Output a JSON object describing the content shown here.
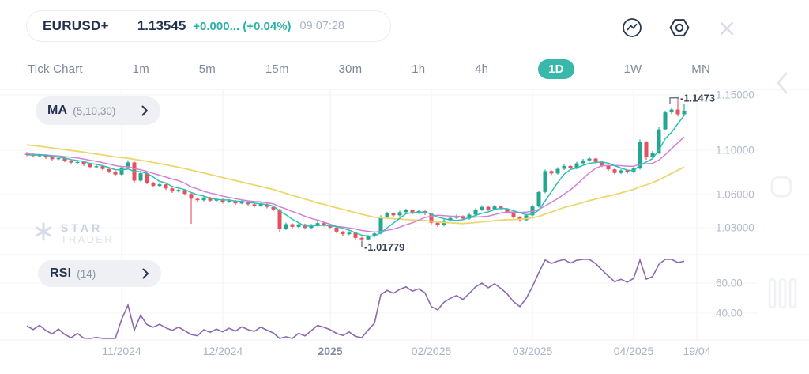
{
  "header": {
    "symbol": "EURUSD+",
    "price": "1.13545",
    "change": "+0.000... (+0.04%)",
    "time": "09:07:28",
    "icons": [
      "trend-pulse-circle",
      "settings-hexagon",
      "close-x"
    ]
  },
  "tabs": {
    "items": [
      {
        "label": "Tick Chart",
        "selected": false
      },
      {
        "label": "1m",
        "selected": false
      },
      {
        "label": "5m",
        "selected": false
      },
      {
        "label": "15m",
        "selected": false
      },
      {
        "label": "30m",
        "selected": false
      },
      {
        "label": "1h",
        "selected": false
      },
      {
        "label": "4h",
        "selected": false
      },
      {
        "label": "1D",
        "selected": true
      },
      {
        "label": "1W",
        "selected": false
      },
      {
        "label": "MN",
        "selected": false
      }
    ]
  },
  "indicators": {
    "ma": {
      "name": "MA",
      "params": "(5,10,30)"
    },
    "rsi": {
      "name": "RSI",
      "params": "(14)"
    }
  },
  "watermark": {
    "line1": "STAR",
    "line2": "TRADER",
    "logo": "star-asterisk"
  },
  "edge_controls": [
    "chevron-left",
    "rounded-square",
    "triple-bars"
  ],
  "chart_data": {
    "type": "candlestick",
    "symbol": "EURUSD+",
    "timeframe": "1D",
    "grid": true,
    "price_axis": {
      "side": "right",
      "visible_range": [
        1.0086,
        1.155
      ],
      "ticks": [
        {
          "label": "1.15000",
          "price": 1.15
        },
        {
          "label": "1.10000",
          "price": 1.1
        },
        {
          "label": "1.06000",
          "price": 1.06
        },
        {
          "label": "1.03000",
          "price": 1.03
        }
      ],
      "annotations": {
        "high": {
          "label": "-1.1473",
          "price": 1.1473,
          "index": 103
        },
        "low": {
          "label": "-1.01779",
          "price": 1.01779,
          "index": 53
        }
      }
    },
    "time_axis": {
      "ticks": [
        {
          "label": "11/2024",
          "index": 15,
          "bold": false
        },
        {
          "label": "12/2024",
          "index": 31,
          "bold": false
        },
        {
          "label": "2025",
          "index": 48,
          "bold": true
        },
        {
          "label": "02/2025",
          "index": 64,
          "bold": false
        },
        {
          "label": "03/2025",
          "index": 80,
          "bold": false
        },
        {
          "label": "04/2025",
          "index": 96,
          "bold": false
        },
        {
          "label": "19/04",
          "index": 106,
          "bold": false
        }
      ]
    },
    "colors": {
      "up": "#21a692",
      "down": "#e4525f"
    },
    "moving_averages": {
      "periods": [
        5,
        10,
        30
      ],
      "colors": {
        "ma5": "#2dc1b2",
        "ma10": "#d47fd6",
        "ma30": "#ecd66e"
      }
    },
    "rsi": {
      "period": 14,
      "color": "#8a69ad",
      "ticks": [
        {
          "label": "60.00",
          "value": 60
        },
        {
          "label": "40.00",
          "value": 40
        }
      ]
    },
    "lead_in_closes": [
      1.1135,
      1.1142,
      1.1128,
      1.115,
      1.116,
      1.1148,
      1.1132,
      1.114,
      1.1118,
      1.1102,
      1.111,
      1.1088,
      1.1072,
      1.108,
      1.1058,
      1.1042,
      1.105,
      1.1028,
      1.1012,
      1.102,
      1.0998,
      1.0982,
      1.099,
      1.0968,
      1.0975,
      1.0958,
      1.0965,
      1.0948,
      1.0955,
      1.0968
    ],
    "candles": [
      [
        1.0968,
        1.0984,
        1.0947,
        1.0962
      ],
      [
        1.0962,
        1.0972,
        1.0934,
        1.0948
      ],
      [
        1.0948,
        1.0968,
        1.0938,
        1.0955
      ],
      [
        1.0955,
        1.0962,
        1.0921,
        1.0935
      ],
      [
        1.0935,
        1.0945,
        1.0906,
        1.092
      ],
      [
        1.092,
        1.0941,
        1.091,
        1.0928
      ],
      [
        1.0928,
        1.0935,
        1.0892,
        1.0905
      ],
      [
        1.0905,
        1.0913,
        1.0874,
        1.0888
      ],
      [
        1.0888,
        1.0908,
        1.0878,
        1.0895
      ],
      [
        1.0895,
        1.0901,
        1.0858,
        1.0872
      ],
      [
        1.0872,
        1.0879,
        1.0834,
        1.0848
      ],
      [
        1.0848,
        1.087,
        1.0838,
        1.0856
      ],
      [
        1.0856,
        1.0862,
        1.0816,
        1.083
      ],
      [
        1.083,
        1.0838,
        1.0794,
        1.0808
      ],
      [
        1.0808,
        1.0815,
        1.0766,
        1.078
      ],
      [
        1.078,
        1.0858,
        1.077,
        1.0845
      ],
      [
        1.0845,
        1.091,
        1.0836,
        1.089
      ],
      [
        1.089,
        1.0898,
        1.07,
        1.0725
      ],
      [
        1.0725,
        1.0806,
        1.0714,
        1.0792
      ],
      [
        1.0792,
        1.08,
        1.0692,
        1.0705
      ],
      [
        1.0705,
        1.0714,
        1.0664,
        1.0678
      ],
      [
        1.0678,
        1.0706,
        1.0668,
        1.0692
      ],
      [
        1.0692,
        1.0699,
        1.0641,
        1.0655
      ],
      [
        1.0655,
        1.0663,
        1.0614,
        1.0628
      ],
      [
        1.0628,
        1.0656,
        1.0618,
        1.0642
      ],
      [
        1.0642,
        1.065,
        1.0591,
        1.0605
      ],
      [
        1.0605,
        1.0612,
        1.0335,
        1.0562
      ],
      [
        1.0562,
        1.0574,
        1.0534,
        1.0548
      ],
      [
        1.0548,
        1.0586,
        1.0538,
        1.0572
      ],
      [
        1.0572,
        1.058,
        1.053,
        1.0545
      ],
      [
        1.0545,
        1.0572,
        1.0536,
        1.0558
      ],
      [
        1.0558,
        1.0565,
        1.0518,
        1.0532
      ],
      [
        1.0532,
        1.0559,
        1.0524,
        1.0545
      ],
      [
        1.0545,
        1.0552,
        1.0506,
        1.052
      ],
      [
        1.052,
        1.0549,
        1.0512,
        1.0535
      ],
      [
        1.0535,
        1.0542,
        1.0498,
        1.0512
      ],
      [
        1.0512,
        1.052,
        1.0484,
        1.0498
      ],
      [
        1.0498,
        1.0526,
        1.049,
        1.0512
      ],
      [
        1.0512,
        1.0519,
        1.0474,
        1.0488
      ],
      [
        1.0488,
        1.0495,
        1.0451,
        1.0465
      ],
      [
        1.0465,
        1.0472,
        1.0262,
        1.029
      ],
      [
        1.029,
        1.0346,
        1.028,
        1.0332
      ],
      [
        1.0332,
        1.034,
        1.0294,
        1.0308
      ],
      [
        1.0308,
        1.0344,
        1.0298,
        1.033
      ],
      [
        1.033,
        1.0337,
        1.0284,
        1.0298
      ],
      [
        1.0298,
        1.0334,
        1.0288,
        1.032
      ],
      [
        1.032,
        1.0356,
        1.031,
        1.0342
      ],
      [
        1.0342,
        1.035,
        1.0311,
        1.0325
      ],
      [
        1.0325,
        1.0332,
        1.0288,
        1.0302
      ],
      [
        1.0302,
        1.0309,
        1.0251,
        1.0265
      ],
      [
        1.0265,
        1.0272,
        1.0228,
        1.0242
      ],
      [
        1.0242,
        1.0269,
        1.0232,
        1.0255
      ],
      [
        1.0255,
        1.0262,
        1.0194,
        1.0208
      ],
      [
        1.0208,
        1.0218,
        1.01779,
        1.0195
      ],
      [
        1.0195,
        1.0236,
        1.0185,
        1.0222
      ],
      [
        1.0222,
        1.0262,
        1.0212,
        1.0248
      ],
      [
        1.0248,
        1.0412,
        1.024,
        1.0398
      ],
      [
        1.0398,
        1.0444,
        1.0388,
        1.043
      ],
      [
        1.043,
        1.0438,
        1.0398,
        1.0412
      ],
      [
        1.0412,
        1.0454,
        1.0402,
        1.044
      ],
      [
        1.044,
        1.0472,
        1.043,
        1.0458
      ],
      [
        1.0458,
        1.0465,
        1.0421,
        1.0435
      ],
      [
        1.0435,
        1.0464,
        1.0425,
        1.045
      ],
      [
        1.045,
        1.0457,
        1.0414,
        1.0428
      ],
      [
        1.0428,
        1.0435,
        1.0331,
        1.0345
      ],
      [
        1.0345,
        1.0352,
        1.0308,
        1.0322
      ],
      [
        1.0322,
        1.0379,
        1.0312,
        1.0365
      ],
      [
        1.0365,
        1.0402,
        1.0355,
        1.0388
      ],
      [
        1.0388,
        1.0419,
        1.0378,
        1.0405
      ],
      [
        1.0405,
        1.0412,
        1.0368,
        1.0382
      ],
      [
        1.0382,
        1.0432,
        1.0372,
        1.0418
      ],
      [
        1.0418,
        1.0476,
        1.0408,
        1.0462
      ],
      [
        1.0462,
        1.0502,
        1.0452,
        1.0488
      ],
      [
        1.0488,
        1.0495,
        1.0451,
        1.0465
      ],
      [
        1.0465,
        1.0506,
        1.0455,
        1.0492
      ],
      [
        1.0492,
        1.0499,
        1.0456,
        1.047
      ],
      [
        1.047,
        1.0477,
        1.0428,
        1.0442
      ],
      [
        1.0442,
        1.0449,
        1.0384,
        1.0398
      ],
      [
        1.0398,
        1.0405,
        1.0354,
        1.0368
      ],
      [
        1.0368,
        1.0426,
        1.0358,
        1.0412
      ],
      [
        1.0412,
        1.0506,
        1.0402,
        1.0492
      ],
      [
        1.0492,
        1.0636,
        1.0482,
        1.0622
      ],
      [
        1.0622,
        1.0826,
        1.0612,
        1.0812
      ],
      [
        1.0812,
        1.082,
        1.0776,
        1.079
      ],
      [
        1.079,
        1.0846,
        1.078,
        1.0832
      ],
      [
        1.0832,
        1.0872,
        1.0822,
        1.0858
      ],
      [
        1.0858,
        1.0865,
        1.0824,
        1.0838
      ],
      [
        1.0838,
        1.0896,
        1.0828,
        1.0882
      ],
      [
        1.0882,
        1.0922,
        1.0872,
        1.0908
      ],
      [
        1.0908,
        1.0939,
        1.0898,
        1.0925
      ],
      [
        1.0925,
        1.0932,
        1.0881,
        1.0895
      ],
      [
        1.0895,
        1.0902,
        1.0848,
        1.0862
      ],
      [
        1.0862,
        1.0869,
        1.0814,
        1.0828
      ],
      [
        1.0828,
        1.0835,
        1.0781,
        1.0795
      ],
      [
        1.0795,
        1.0832,
        1.0785,
        1.0818
      ],
      [
        1.0818,
        1.0826,
        1.0788,
        1.0802
      ],
      [
        1.0802,
        1.0849,
        1.0792,
        1.0835
      ],
      [
        1.0835,
        1.1096,
        1.0825,
        1.1075
      ],
      [
        1.1075,
        1.1082,
        1.0912,
        1.0938
      ],
      [
        1.0938,
        1.0992,
        1.0926,
        1.0975
      ],
      [
        1.0975,
        1.1208,
        1.0965,
        1.1188
      ],
      [
        1.1188,
        1.1358,
        1.1178,
        1.1342
      ],
      [
        1.1342,
        1.1385,
        1.1326,
        1.1368
      ],
      [
        1.1368,
        1.1473,
        1.1305,
        1.1325
      ],
      [
        1.1325,
        1.142,
        1.1308,
        1.1355
      ]
    ]
  }
}
